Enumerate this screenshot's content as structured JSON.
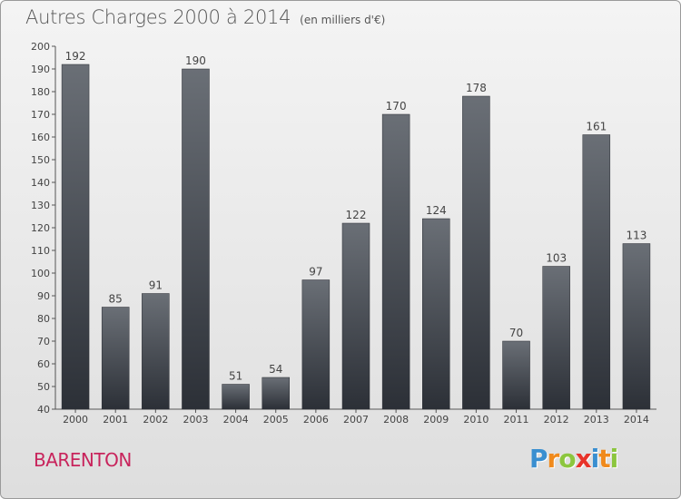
{
  "header": {
    "title": "Autres Charges 2000 à 2014",
    "unit_note": "(en milliers d'€)"
  },
  "footer": {
    "town": "BARENTON",
    "brand": "Proxiti",
    "brand_letters": [
      {
        "ch": "P",
        "color": "#3a8fd0"
      },
      {
        "ch": "r",
        "color": "#f08a1c"
      },
      {
        "ch": "o",
        "color": "#8cc63e"
      },
      {
        "ch": "x",
        "color": "#e8332a"
      },
      {
        "ch": "i",
        "color": "#3a8fd0"
      },
      {
        "ch": "t",
        "color": "#f08a1c"
      },
      {
        "ch": "i",
        "color": "#8cc63e"
      }
    ]
  },
  "colors": {
    "bar_top": "#6a6f76",
    "bar_bottom": "#2c3037",
    "town": "#c8245c",
    "text": "#444444"
  },
  "chart_data": {
    "type": "bar",
    "title": "Autres Charges 2000 à 2014",
    "subtitle": "(en milliers d'€)",
    "xlabel": "",
    "ylabel": "",
    "categories": [
      "2000",
      "2001",
      "2002",
      "2003",
      "2004",
      "2005",
      "2006",
      "2007",
      "2008",
      "2009",
      "2010",
      "2011",
      "2012",
      "2013",
      "2014"
    ],
    "values": [
      192,
      85,
      91,
      190,
      51,
      54,
      97,
      122,
      170,
      124,
      178,
      70,
      103,
      161,
      113
    ],
    "ylim": [
      40,
      200
    ],
    "yticks": [
      40,
      50,
      60,
      70,
      80,
      90,
      100,
      110,
      120,
      130,
      140,
      150,
      160,
      170,
      180,
      190,
      200
    ],
    "grid": false,
    "legend": "none"
  }
}
